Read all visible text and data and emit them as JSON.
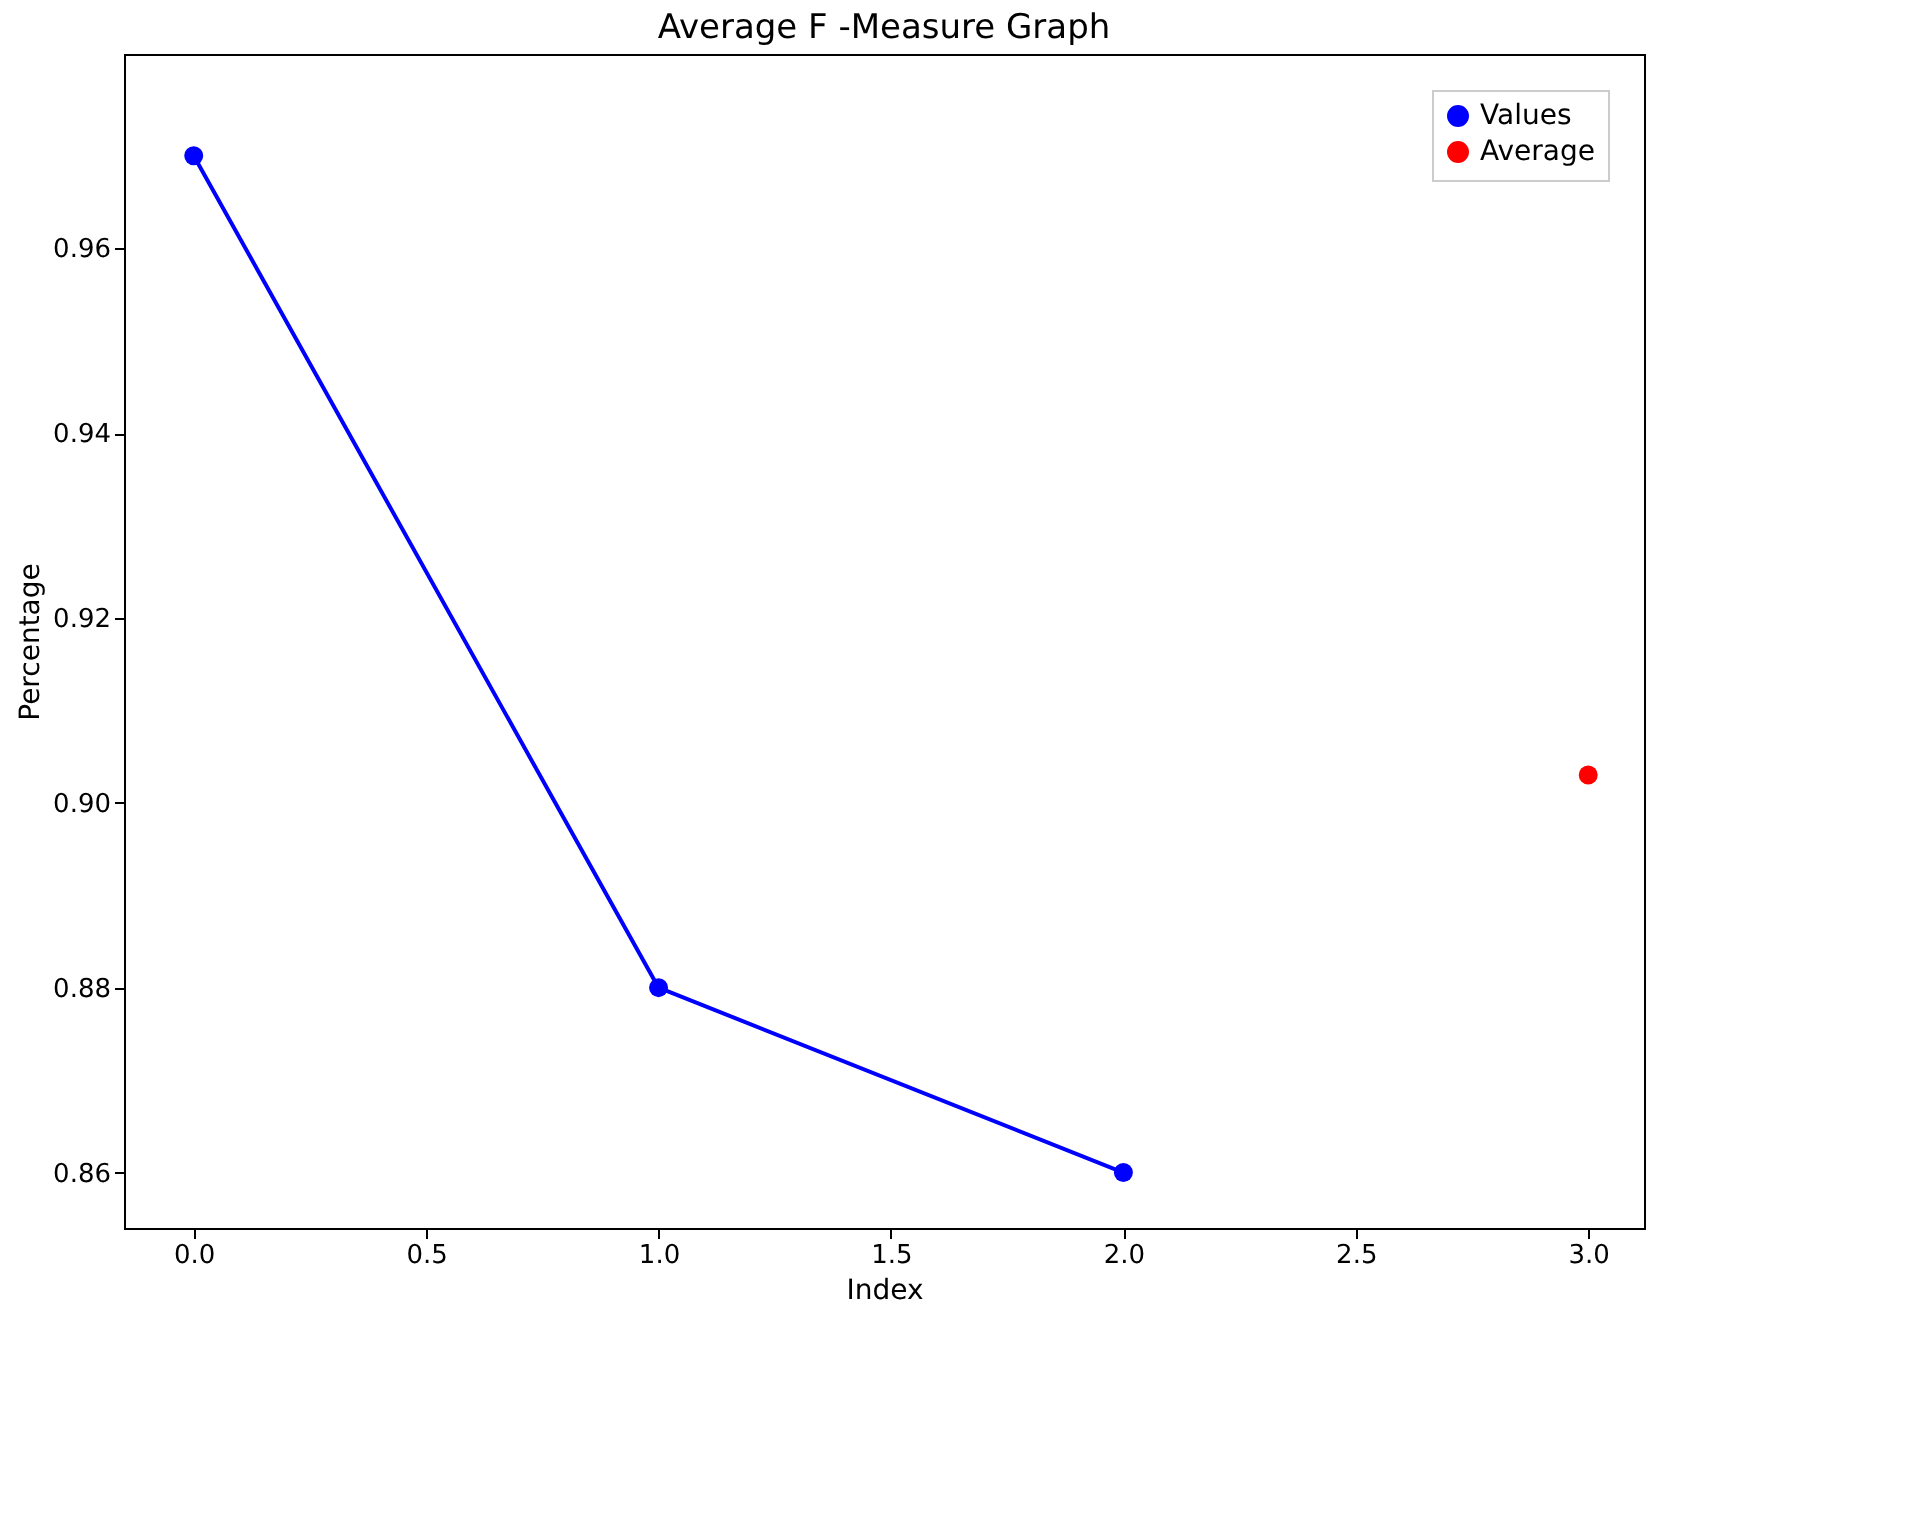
{
  "chart_data": {
    "type": "line",
    "title": "Average F -Measure Graph",
    "xlabel": "Index",
    "ylabel": "Percentage",
    "series": [
      {
        "name": "Values",
        "color": "#0000ff",
        "x": [
          0,
          1,
          2
        ],
        "values": [
          0.97,
          0.88,
          0.86
        ]
      },
      {
        "name": "Average",
        "color": "#ff0000",
        "type": "scatter",
        "x": [
          3
        ],
        "values": [
          0.903
        ]
      }
    ],
    "xlim": [
      -0.15,
      3.12
    ],
    "ylim": [
      0.854,
      0.981
    ],
    "xticks": [
      {
        "value": 0,
        "label": "0.0"
      },
      {
        "value": 0.5,
        "label": "0.5"
      },
      {
        "value": 1,
        "label": "1.0"
      },
      {
        "value": 1.5,
        "label": "1.5"
      },
      {
        "value": 2,
        "label": "2.0"
      },
      {
        "value": 2.5,
        "label": "2.5"
      },
      {
        "value": 3,
        "label": "3.0"
      }
    ],
    "yticks": [
      {
        "value": 0.86,
        "label": "0.86"
      },
      {
        "value": 0.88,
        "label": "0.88"
      },
      {
        "value": 0.9,
        "label": "0.90"
      },
      {
        "value": 0.92,
        "label": "0.92"
      },
      {
        "value": 0.94,
        "label": "0.94"
      },
      {
        "value": 0.96,
        "label": "0.96"
      }
    ],
    "marker": "circle",
    "legend": "top right",
    "grid": false
  }
}
